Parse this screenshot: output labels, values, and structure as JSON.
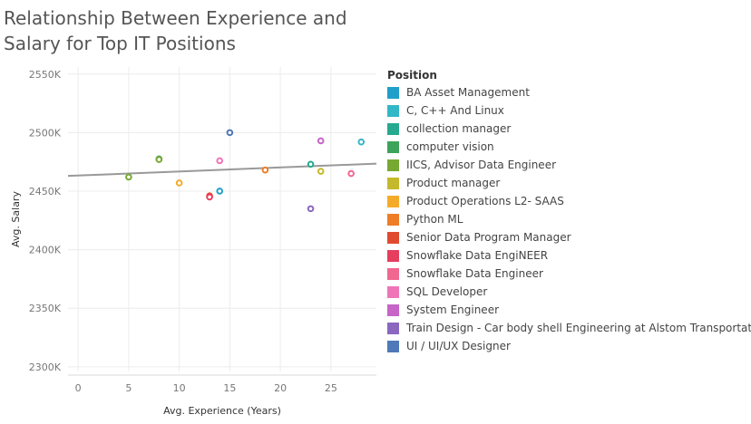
{
  "chart_data": {
    "type": "scatter",
    "title_lines": [
      "Relationship Between Experience and",
      "Salary for Top IT Positions"
    ],
    "xlabel": "Avg. Experience (Years)",
    "ylabel": "Avg. Salary",
    "xlim": [
      -1,
      29.5
    ],
    "ylim": [
      2296,
      2556
    ],
    "x_ticks": [
      0,
      5,
      10,
      15,
      20,
      25
    ],
    "y_ticks": [
      {
        "value": 2300,
        "label": "2300K"
      },
      {
        "value": 2350,
        "label": "2350K"
      },
      {
        "value": 2400,
        "label": "2400K"
      },
      {
        "value": 2450,
        "label": "2450K"
      },
      {
        "value": 2500,
        "label": "2500K"
      },
      {
        "value": 2550,
        "label": "2550K"
      }
    ],
    "grid": true,
    "legend_title": "Position",
    "legend_placement": "right",
    "trend_line": {
      "x": [
        -1,
        29.5
      ],
      "y": [
        2463,
        2473.5
      ],
      "color": "#999999"
    },
    "series": [
      {
        "name": "BA Asset Management",
        "color": "#1f9fc9",
        "points": [
          [
            14,
            2450
          ]
        ]
      },
      {
        "name": "C, C++ And Linux",
        "color": "#32b7c7",
        "points": [
          [
            28,
            2492
          ]
        ]
      },
      {
        "name": "collection manager",
        "color": "#26a98f",
        "points": [
          [
            23,
            2473
          ]
        ]
      },
      {
        "name": "computer vision",
        "color": "#3da35a",
        "points": [
          [
            8,
            2477.5
          ]
        ]
      },
      {
        "name": "IICS, Advisor Data Engineer",
        "color": "#76a832",
        "points": [
          [
            5,
            2462
          ],
          [
            8,
            2477
          ]
        ]
      },
      {
        "name": "Product manager",
        "color": "#c4b82c",
        "points": [
          [
            24,
            2467
          ]
        ]
      },
      {
        "name": "Product Operations L2- SAAS",
        "color": "#f5ab2a",
        "points": [
          [
            10,
            2457
          ]
        ]
      },
      {
        "name": "Python ML",
        "color": "#ee7d26",
        "points": [
          [
            18.5,
            2468
          ]
        ]
      },
      {
        "name": "Senior Data Program Manager",
        "color": "#e04a2f",
        "points": [
          [
            13,
            2446
          ]
        ]
      },
      {
        "name": "Snowflake Data EngiNEER",
        "color": "#e53e5e",
        "points": [
          [
            13,
            2445
          ]
        ]
      },
      {
        "name": "Snowflake Data Engineer",
        "color": "#f06790",
        "points": [
          [
            27,
            2465
          ]
        ]
      },
      {
        "name": "SQL Developer",
        "color": "#ef75b8",
        "points": [
          [
            14,
            2476
          ]
        ]
      },
      {
        "name": "System Engineer",
        "color": "#c664c7",
        "points": [
          [
            24,
            2493
          ]
        ]
      },
      {
        "name": "Train Design - Car body shell Engineering at Alstom Transportation",
        "color": "#8a68c0",
        "points": [
          [
            23,
            2435
          ]
        ]
      },
      {
        "name": "UI / UI/UX Designer",
        "color": "#4f79b8",
        "points": [
          [
            15,
            2500
          ]
        ]
      }
    ]
  }
}
